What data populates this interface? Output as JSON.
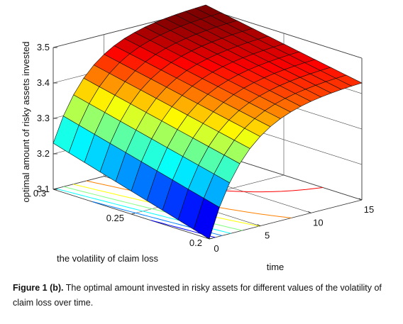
{
  "chart_data": {
    "type": "surface",
    "zlabel": "optimal amount of risky assets invested",
    "xlabel": "time",
    "ylabel": "the volatility of claim loss",
    "time_ticks": [
      "0",
      "5",
      "10",
      "15"
    ],
    "volatility_ticks": [
      "0.2",
      "0.25",
      "0.3"
    ],
    "z_ticks": [
      "3.1",
      "3.2",
      "3.3",
      "3.4",
      "3.5"
    ],
    "xlim": [
      0,
      15
    ],
    "ylim": [
      0.2,
      0.3
    ],
    "zlim": [
      3.1,
      3.5
    ],
    "colormap": "jet",
    "grid": true,
    "contours_on_floor": true,
    "surface_corners": [
      {
        "time": 0,
        "volatility": 0.2,
        "value": 3.1
      },
      {
        "time": 0,
        "volatility": 0.3,
        "value": 3.23
      },
      {
        "time": 15,
        "volatility": 0.2,
        "value": 3.43
      },
      {
        "time": 15,
        "volatility": 0.3,
        "value": 3.51
      }
    ]
  },
  "caption": {
    "label": "Figure 1 (b).",
    "text": " The optimal amount invested in risky assets for different values of the volatility of claim loss over time."
  }
}
